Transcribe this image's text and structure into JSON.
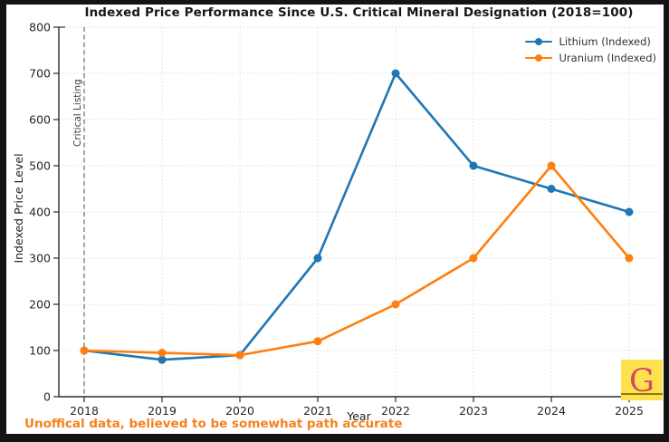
{
  "chart_data": {
    "type": "line",
    "title": "Indexed Price Performance Since U.S. Critical Mineral Designation (2018=100)",
    "xlabel": "Year",
    "ylabel": "Indexed Price Level",
    "x": [
      2018,
      2019,
      2020,
      2021,
      2022,
      2023,
      2024,
      2025
    ],
    "ylim": [
      0,
      800
    ],
    "ytick_step": 100,
    "grid": true,
    "legend_position": "upper right",
    "series": [
      {
        "name": "Lithium (Indexed)",
        "color": "#1f77b4",
        "values": [
          100,
          80,
          90,
          300,
          700,
          500,
          450,
          400
        ]
      },
      {
        "name": "Uranium (Indexed)",
        "color": "#ff7f0e",
        "values": [
          100,
          95,
          90,
          120,
          200,
          300,
          500,
          300
        ]
      }
    ],
    "vline": {
      "x": 2018,
      "label": "Critical Listing",
      "style": "dashed",
      "color": "#777777"
    },
    "caption": "Unoffical data, believed to be somewhat path accurate",
    "caption_color": "#f5811c"
  },
  "logo": {
    "letter": "G",
    "background": "#fee14f",
    "letter_color": "#d34a5e",
    "baseline_color": "#8a7a12"
  },
  "style_colors": {
    "grid": "#dcdcdc",
    "spine": "#2a2a2a",
    "tick_label": "#262626",
    "frame": "#141414"
  }
}
